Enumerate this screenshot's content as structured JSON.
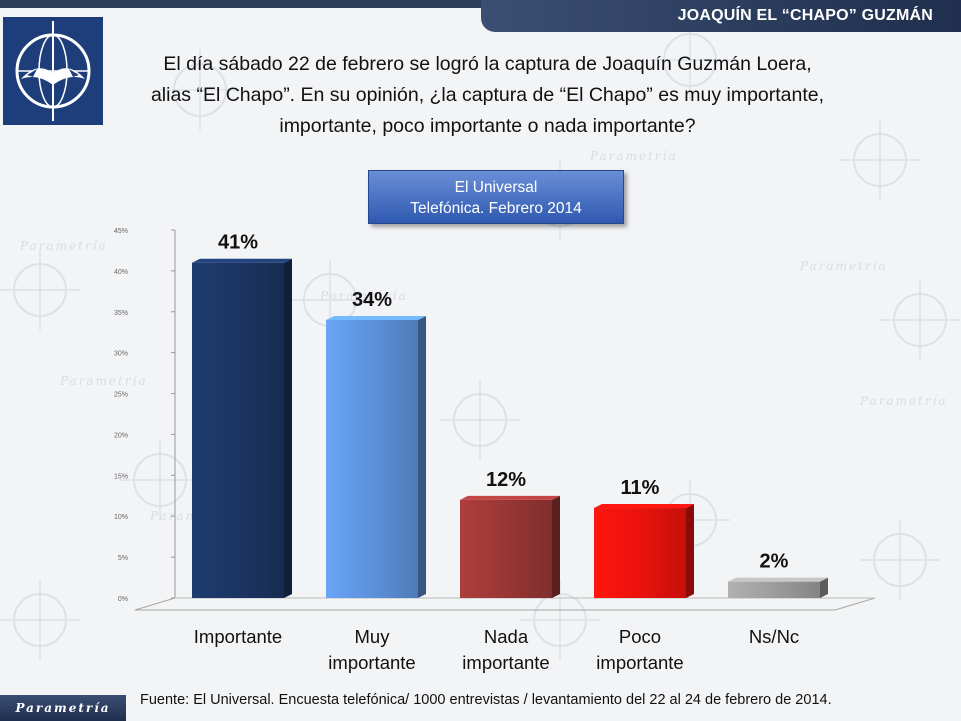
{
  "header": {
    "topic": "JOAQUÍN EL “CHAPO” GUZMÁN",
    "question_lines": [
      "El día sábado 22 de febrero se logró la captura de Joaquín Guzmán Loera,",
      "alias “El Chapo”. En su opinión, ¿la captura de “El Chapo” es muy importante,",
      "importante, poco importante o nada importante?"
    ]
  },
  "source_box": {
    "line1": "El Universal",
    "line2": "Telefónica. Febrero 2014"
  },
  "chart_data": {
    "type": "bar",
    "categories": [
      [
        "Importante"
      ],
      [
        "Muy",
        "importante"
      ],
      [
        "Nada",
        "importante"
      ],
      [
        "Poco",
        "importante"
      ],
      [
        "Ns/Nc"
      ]
    ],
    "values": [
      41,
      34,
      12,
      11,
      2
    ],
    "data_labels": [
      "41%",
      "34%",
      "12%",
      "11%",
      "2%"
    ],
    "colors": [
      "#1b3461",
      "#5b8fd8",
      "#963634",
      "#e8120c",
      "#9a9a9a"
    ],
    "ylim": [
      0,
      45
    ],
    "yticks": [
      "0%",
      "5%",
      "10%",
      "15%",
      "20%",
      "25%",
      "30%",
      "35%",
      "40%",
      "45%"
    ],
    "grid": false
  },
  "footer": {
    "brand": "Parametría",
    "note": "Fuente: El Universal. Encuesta telefónica/ 1000 entrevistas / levantamiento del  22 al 24 de febrero de 2014."
  },
  "watermark": "Parametría"
}
